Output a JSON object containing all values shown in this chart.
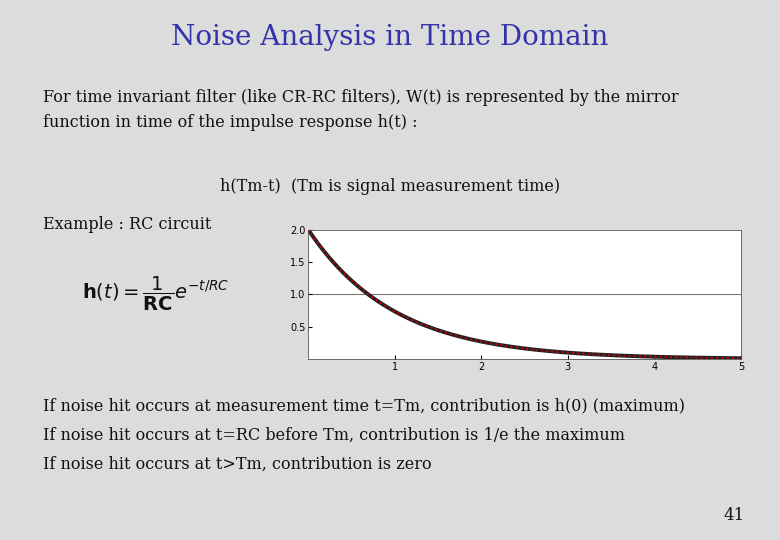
{
  "title": "Noise Analysis in Time Domain",
  "title_color": "#3333AA",
  "title_fontsize": 20,
  "background_color": "#DCDCDC",
  "body_text_1": "For time invariant filter (like CR-RC filters), W(t) is represented by the mirror\nfunction in time of the impulse response h(t) :",
  "body_text_2": "h(Tm-t)  (Tm is signal measurement time)",
  "body_text_3": "Example : RC circuit",
  "formula_text": "$\\mathbf{h}(t) = \\dfrac{1}{\\mathbf{RC}}e^{-t/RC}$",
  "bullet_1": "If noise hit occurs at measurement time t=Tm, contribution is h(0) (maximum)",
  "bullet_2": "If noise hit occurs at t=RC before Tm, contribution is 1/e the maximum",
  "bullet_3": "If noise hit occurs at t>Tm, contribution is zero",
  "page_number": "41",
  "graph_xlim": [
    0,
    5
  ],
  "graph_ylim": [
    0,
    2
  ],
  "graph_yticks": [
    0.5,
    1.0,
    1.5,
    2.0
  ],
  "graph_xticks": [
    1,
    2,
    3,
    4,
    5
  ],
  "graph_hline_y": 1.0,
  "graph_hline_color": "#777777",
  "curve_color_outer": "#222222",
  "curve_color_inner": "#CC0000",
  "text_color": "#111111",
  "font_family": "serif",
  "body_fontsize": 11.5,
  "bullet_fontsize": 11.5
}
